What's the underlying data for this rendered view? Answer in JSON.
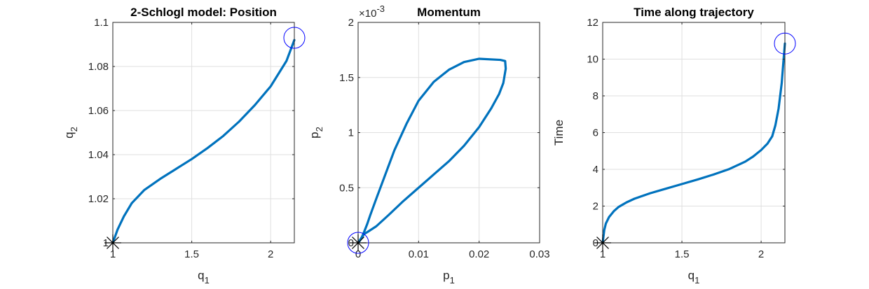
{
  "chart_data": [
    {
      "type": "line",
      "title": "2-Schlogl model: Position",
      "xlabel": "q",
      "xlabel_sub": "1",
      "ylabel": "q",
      "ylabel_sub": "2",
      "xlim": [
        1,
        2.15
      ],
      "ylim": [
        1,
        1.1
      ],
      "xticks": [
        1,
        1.5,
        2
      ],
      "yticks": [
        1,
        1.02,
        1.04,
        1.06,
        1.08,
        1.1
      ],
      "xtick_labels": [
        "1",
        "1.5",
        "2"
      ],
      "ytick_labels": [
        "1",
        "1.02",
        "1.04",
        "1.06",
        "1.08",
        "1.1"
      ],
      "grid": true,
      "series": [
        {
          "color": "#0072BD",
          "x": [
            1.0,
            1.03,
            1.07,
            1.12,
            1.2,
            1.3,
            1.4,
            1.5,
            1.6,
            1.7,
            1.8,
            1.9,
            2.0,
            2.1,
            2.15
          ],
          "y": [
            1.0,
            1.006,
            1.012,
            1.018,
            1.024,
            1.029,
            1.0335,
            1.038,
            1.043,
            1.0485,
            1.055,
            1.0625,
            1.071,
            1.0825,
            1.092
          ]
        }
      ],
      "markers": [
        {
          "shape": "asterisk",
          "color": "#000000",
          "x": 1.0,
          "y": 1.0
        },
        {
          "shape": "circle",
          "color": "#0000FF",
          "x": 2.15,
          "y": 1.093
        }
      ]
    },
    {
      "type": "line",
      "title": "Momentum",
      "xlabel": "p",
      "xlabel_sub": "1",
      "ylabel": "p",
      "ylabel_sub": "2",
      "y_exponent_base": "×10",
      "y_exponent": "-3",
      "xlim": [
        0,
        0.03
      ],
      "ylim": [
        0,
        2
      ],
      "xticks": [
        0,
        0.01,
        0.02,
        0.03
      ],
      "yticks": [
        0,
        0.5,
        1,
        1.5,
        2
      ],
      "xtick_labels": [
        "0",
        "0.01",
        "0.02",
        "0.03"
      ],
      "ytick_labels": [
        "0",
        "0.5",
        "1",
        "1.5",
        "2"
      ],
      "grid": true,
      "series": [
        {
          "color": "#0072BD",
          "x": [
            0.0,
            0.0006,
            0.001,
            0.0015,
            0.002,
            0.003,
            0.0045,
            0.006,
            0.008,
            0.01,
            0.0125,
            0.015,
            0.0175,
            0.02,
            0.0235,
            0.0243,
            0.0244,
            0.024,
            0.0233,
            0.022,
            0.02,
            0.0175,
            0.015,
            0.0125,
            0.01,
            0.0075,
            0.005,
            0.003,
            0.0016,
            0.001,
            0.0006,
            0.0003,
            0.0
          ],
          "y": [
            0.0,
            0.05,
            0.1,
            0.17,
            0.25,
            0.4,
            0.62,
            0.84,
            1.08,
            1.29,
            1.46,
            1.57,
            1.64,
            1.67,
            1.66,
            1.65,
            1.58,
            1.45,
            1.35,
            1.22,
            1.05,
            0.88,
            0.74,
            0.62,
            0.5,
            0.38,
            0.25,
            0.15,
            0.1,
            0.08,
            0.05,
            0.02,
            0.0
          ]
        }
      ],
      "markers": [
        {
          "shape": "asterisk",
          "color": "#000000",
          "x": 0.0,
          "y": 0.0
        },
        {
          "shape": "circle",
          "color": "#0000FF",
          "x": 0.0,
          "y": 0.0
        }
      ]
    },
    {
      "type": "line",
      "title": "Time along trajectory",
      "xlabel": "q",
      "xlabel_sub": "1",
      "ylabel": "Time",
      "ylabel_sub": "",
      "xlim": [
        1,
        2.15
      ],
      "ylim": [
        0,
        12
      ],
      "xticks": [
        1,
        1.5,
        2
      ],
      "yticks": [
        0,
        2,
        4,
        6,
        8,
        10,
        12
      ],
      "xtick_labels": [
        "1",
        "1.5",
        "2"
      ],
      "ytick_labels": [
        "0",
        "2",
        "4",
        "6",
        "8",
        "10",
        "12"
      ],
      "grid": true,
      "series": [
        {
          "color": "#0072BD",
          "x": [
            1.0,
            1.005,
            1.01,
            1.02,
            1.04,
            1.07,
            1.1,
            1.15,
            1.2,
            1.3,
            1.4,
            1.5,
            1.6,
            1.7,
            1.8,
            1.9,
            1.95,
            2.0,
            2.04,
            2.07,
            2.09,
            2.11,
            2.13,
            2.14,
            2.15
          ],
          "y": [
            0.0,
            0.35,
            0.7,
            1.05,
            1.4,
            1.72,
            1.95,
            2.2,
            2.4,
            2.7,
            2.95,
            3.2,
            3.45,
            3.72,
            4.02,
            4.42,
            4.7,
            5.05,
            5.4,
            5.8,
            6.4,
            7.3,
            8.7,
            9.8,
            10.85
          ]
        }
      ],
      "markers": [
        {
          "shape": "asterisk",
          "color": "#000000",
          "x": 1.0,
          "y": 0.0
        },
        {
          "shape": "circle",
          "color": "#0000FF",
          "x": 2.15,
          "y": 10.85
        }
      ]
    }
  ]
}
